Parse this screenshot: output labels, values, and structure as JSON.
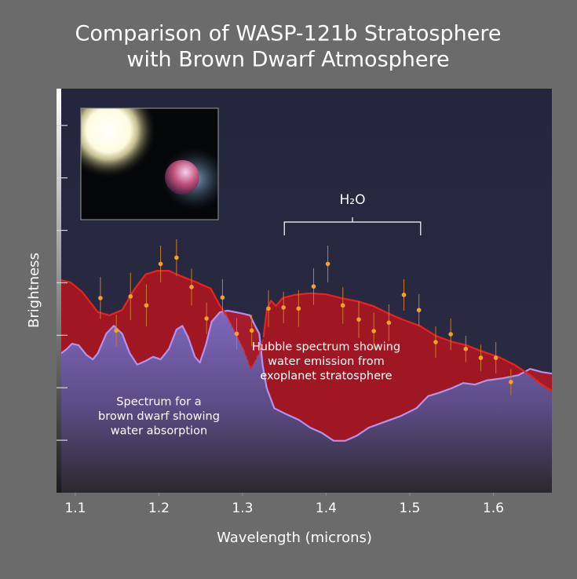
{
  "chart_data": {
    "type": "line",
    "title": [
      "Comparison of WASP-121b Stratosphere",
      "with Brown Dwarf Atmosphere"
    ],
    "x_label": "Wavelength (microns)",
    "y_label": "Brightness",
    "xlim": [
      1.0775,
      1.67
    ],
    "xticks": [
      1.1,
      1.2,
      1.3,
      1.4,
      1.5,
      1.6
    ],
    "ylim": [
      0,
      7.7
    ],
    "yticks": [
      1,
      2,
      3,
      4,
      5,
      6,
      7
    ],
    "grid": false,
    "series": [
      {
        "color": "#b690ee",
        "fill": "#7f68bd",
        "x": [
          1.0775,
          1.09,
          1.096,
          1.104,
          1.113,
          1.121,
          1.127,
          1.137,
          1.146,
          1.156,
          1.165,
          1.174,
          1.184,
          1.193,
          1.202,
          1.212,
          1.221,
          1.228,
          1.235,
          1.243,
          1.249,
          1.256,
          1.263,
          1.273,
          1.282,
          1.292,
          1.301,
          1.309,
          1.315,
          1.32,
          1.324,
          1.329,
          1.338,
          1.353,
          1.367,
          1.381,
          1.395,
          1.409,
          1.423,
          1.437,
          1.451,
          1.47,
          1.489,
          1.508,
          1.522,
          1.536,
          1.55,
          1.564,
          1.578,
          1.592,
          1.611,
          1.63,
          1.644,
          1.658,
          1.67
        ],
        "values": [
          2.59,
          2.74,
          2.84,
          2.81,
          2.63,
          2.54,
          2.66,
          3.03,
          3.18,
          3.03,
          2.66,
          2.44,
          2.51,
          2.59,
          2.54,
          2.74,
          3.11,
          3.18,
          2.96,
          2.59,
          2.48,
          2.81,
          3.26,
          3.44,
          3.47,
          3.44,
          3.41,
          3.38,
          3.18,
          3.03,
          2.44,
          1.99,
          1.61,
          1.49,
          1.39,
          1.24,
          1.14,
          0.99,
          0.99,
          1.09,
          1.24,
          1.35,
          1.46,
          1.61,
          1.84,
          1.91,
          1.99,
          2.09,
          2.06,
          2.14,
          2.18,
          2.24,
          2.36,
          2.3,
          2.27
        ]
      },
      {
        "color": "#e8231f",
        "fill": "#a8161f",
        "x": [
          1.0775,
          1.094,
          1.108,
          1.127,
          1.141,
          1.156,
          1.17,
          1.184,
          1.198,
          1.212,
          1.226,
          1.245,
          1.262,
          1.273,
          1.281,
          null,
          1.325,
          1.329,
          1.334,
          1.34,
          1.348,
          1.362,
          1.381,
          1.4,
          1.418,
          1.437,
          1.456,
          1.475,
          1.493,
          1.512,
          1.531,
          1.55,
          1.568,
          1.587,
          1.606,
          1.625,
          1.644,
          1.658,
          1.67
        ],
        "values": [
          4.07,
          4.01,
          3.83,
          3.44,
          3.38,
          3.48,
          3.86,
          4.16,
          4.23,
          4.23,
          4.13,
          4.01,
          3.89,
          3.56,
          3.38,
          null,
          2.96,
          3.48,
          3.66,
          3.56,
          3.71,
          3.77,
          3.8,
          3.78,
          3.71,
          3.65,
          3.56,
          3.41,
          3.29,
          3.18,
          2.99,
          2.88,
          2.81,
          2.69,
          2.59,
          2.44,
          2.24,
          2.06,
          1.94
        ]
      },
      {
        "color": "#e8231f",
        "dash": true,
        "x": [
          1.281,
          1.292,
          1.301,
          1.31,
          1.32,
          1.325
        ],
        "values": [
          3.38,
          3.03,
          2.74,
          2.36,
          2.66,
          2.96
        ]
      }
    ],
    "points": {
      "color": "#f2a22a",
      "error_color": "#c97a22",
      "x": [
        1.13,
        1.149,
        1.166,
        1.185,
        1.202,
        1.221,
        1.239,
        1.257,
        1.276,
        1.293,
        1.311,
        1.331,
        1.349,
        1.367,
        1.385,
        1.402,
        1.42,
        1.439,
        1.457,
        1.475,
        1.493,
        1.511,
        1.531,
        1.549,
        1.567,
        1.585,
        1.603,
        1.621
      ],
      "values": [
        3.71,
        3.09,
        3.74,
        3.57,
        4.36,
        4.48,
        3.92,
        3.32,
        3.72,
        3.03,
        3.09,
        3.51,
        3.53,
        3.51,
        3.93,
        4.36,
        3.57,
        3.3,
        3.08,
        3.24,
        3.77,
        3.48,
        2.87,
        3.02,
        2.74,
        2.57,
        2.57,
        2.11
      ],
      "errors": [
        0.4,
        0.3,
        0.45,
        0.4,
        0.35,
        0.35,
        0.35,
        0.3,
        0.35,
        0.3,
        0.3,
        0.35,
        0.3,
        0.35,
        0.35,
        0.35,
        0.35,
        0.35,
        0.35,
        0.35,
        0.3,
        0.3,
        0.3,
        0.3,
        0.25,
        0.25,
        0.3,
        0.25
      ]
    },
    "bracket": {
      "label": "H₂O",
      "x": [
        1.35,
        1.513
      ]
    },
    "annotations": [
      {
        "x": 1.4,
        "y": 2.5,
        "lines": [
          "Hubble spectrum showing",
          "water emission from",
          "exoplanet stratosphere"
        ]
      },
      {
        "x": 1.2,
        "y": 1.45,
        "lines": [
          "Spectrum for a",
          "brown dwarf showing",
          "water absorption"
        ]
      }
    ]
  }
}
